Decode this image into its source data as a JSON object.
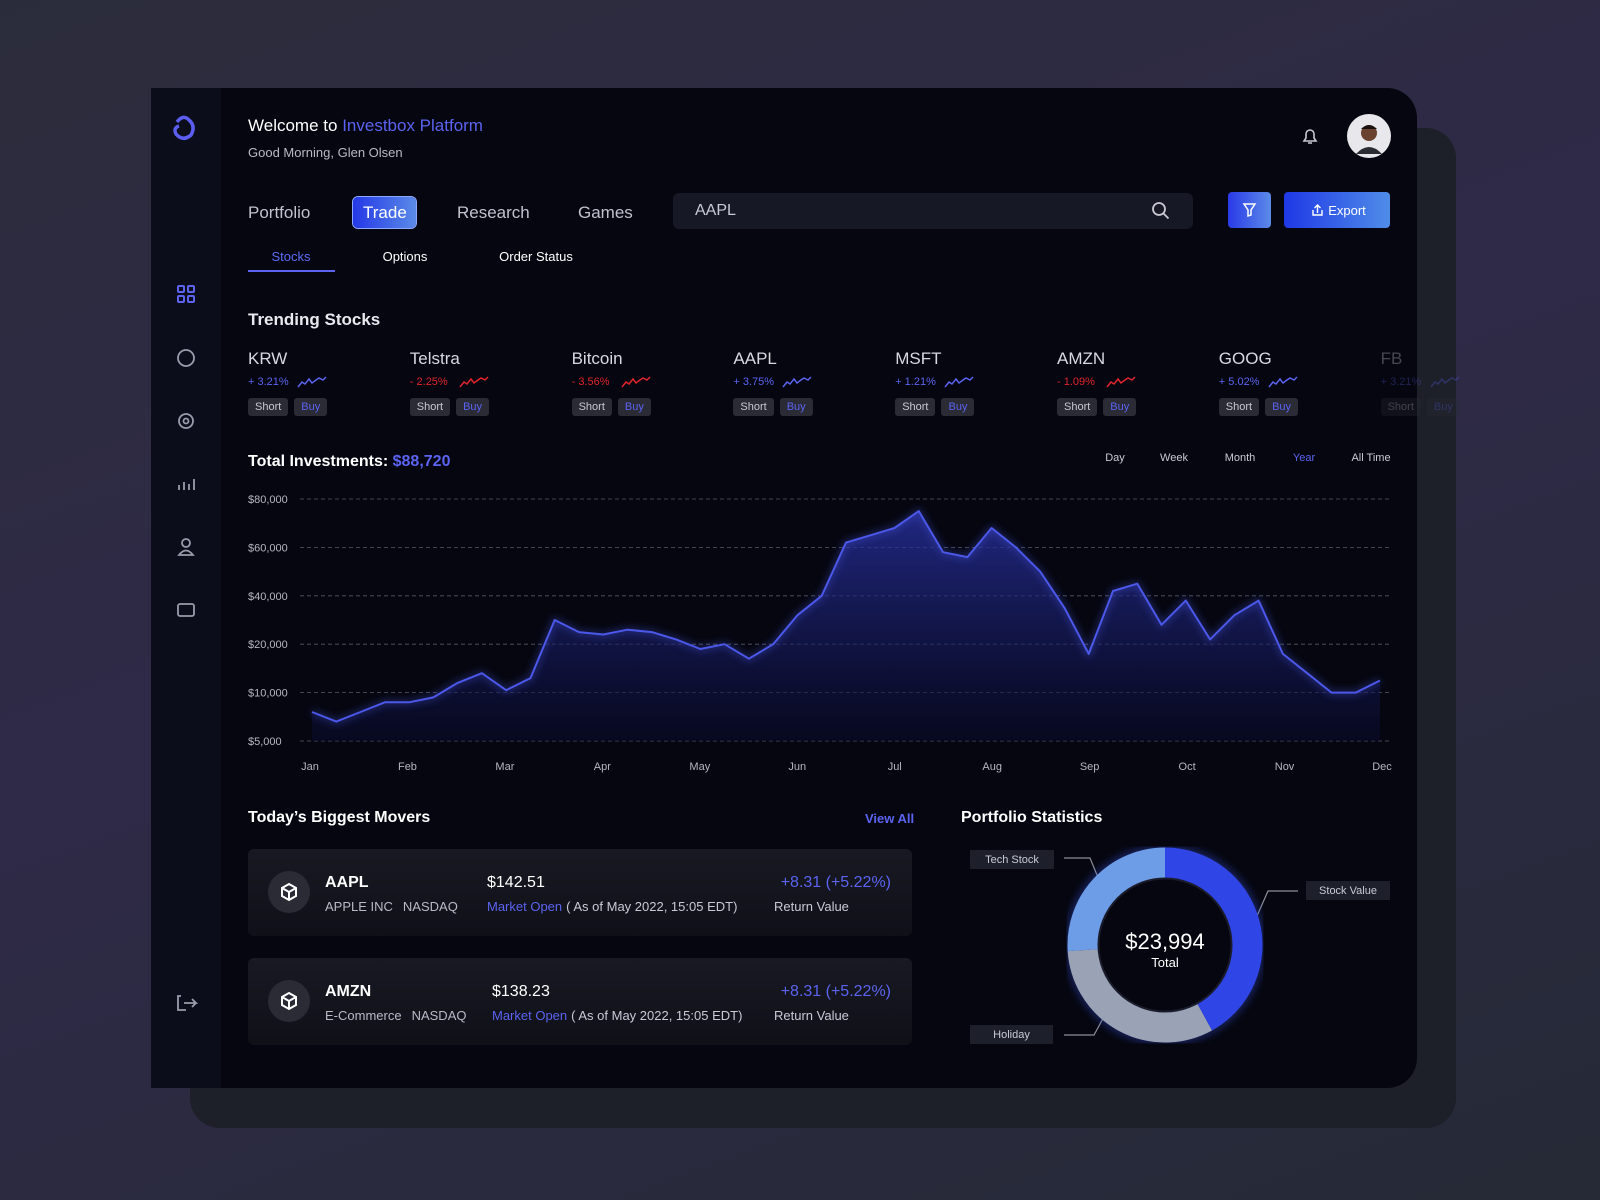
{
  "header": {
    "welcome": "Welcome to",
    "brand": "Investbox Platform",
    "greeting": "Good Morning, Glen Olsen"
  },
  "nav": {
    "tabs": [
      "Portfolio",
      "Trade",
      "Research",
      "Games"
    ],
    "active": 1
  },
  "search": {
    "query": "AAPL"
  },
  "export": "Export",
  "subtabs": {
    "items": [
      "Stocks",
      "Options",
      "Order Status"
    ],
    "active": 0
  },
  "trending": {
    "title": "Trending Stocks",
    "short": "Short",
    "buy": "Buy",
    "stocks": [
      {
        "name": "KRW",
        "change": "+ 3.21%",
        "direction": "up"
      },
      {
        "name": "Telstra",
        "change": "- 2.25%",
        "direction": "down"
      },
      {
        "name": "Bitcoin",
        "change": "- 3.56%",
        "direction": "down"
      },
      {
        "name": "AAPL",
        "change": "+ 3.75%",
        "direction": "up"
      },
      {
        "name": "MSFT",
        "change": "+ 1.21%",
        "direction": "up"
      },
      {
        "name": "AMZN",
        "change": "- 1.09%",
        "direction": "down"
      },
      {
        "name": "GOOG",
        "change": "+ 5.02%",
        "direction": "up"
      },
      {
        "name": "FB",
        "change": "+ 3.21%",
        "direction": "up"
      }
    ]
  },
  "investments": {
    "title": "Total Investments:",
    "amount": "$88,720",
    "ranges": [
      "Day",
      "Week",
      "Month",
      "Year",
      "All Time"
    ],
    "active_range": 3
  },
  "movers": {
    "title": "Today’s Biggest Movers",
    "view_all": "View All",
    "items": [
      {
        "symbol": "AAPL",
        "company": "APPLE INC",
        "exchange": "NASDAQ",
        "price": "$142.51",
        "status": "Market Open",
        "as_of": "( As of May 2022, 15:05 EDT)",
        "change": "+8.31 (+5.22%)",
        "change_label": "Return Value"
      },
      {
        "symbol": "AMZN",
        "company": "E-Commerce",
        "exchange": "NASDAQ",
        "price": "$138.23",
        "status": "Market Open",
        "as_of": "( As of May 2022, 15:05 EDT)",
        "change": "+8.31 (+5.22%)",
        "change_label": "Return Value"
      }
    ]
  },
  "portfolio": {
    "title": "Portfolio Statistics"
  },
  "chart_data": [
    {
      "type": "line",
      "color": "#4b58ea",
      "grid": true,
      "x_labels": [
        "Jan",
        "Feb",
        "Mar",
        "Apr",
        "May",
        "Jun",
        "Jul",
        "Aug",
        "Sep",
        "Oct",
        "Nov",
        "Dec"
      ],
      "values": [
        8000,
        7000,
        8000,
        9000,
        9000,
        9500,
        12000,
        14000,
        10500,
        13000,
        30000,
        25000,
        24000,
        26000,
        25000,
        22000,
        19000,
        20000,
        17000,
        20000,
        32000,
        40000,
        62000,
        65000,
        68000,
        75000,
        58000,
        56000,
        68000,
        60000,
        50000,
        35000,
        18000,
        42000,
        45000,
        28000,
        38000,
        22000,
        32000,
        38000,
        18000,
        14000,
        10000,
        10000,
        12500
      ],
      "ylim": [
        5000,
        80000
      ],
      "yticks": [
        {
          "value": 5000,
          "label": "$5,000"
        },
        {
          "value": 10000,
          "label": "$10,000"
        },
        {
          "value": 20000,
          "label": "$20,000"
        },
        {
          "value": 40000,
          "label": "$40,000"
        },
        {
          "value": 60000,
          "label": "$60,000"
        },
        {
          "value": 80000,
          "label": "$80,000"
        }
      ]
    },
    {
      "type": "pie",
      "center_value": "$23,994",
      "center_label": "Total",
      "categories": [
        "Stock Value",
        "Holiday",
        "Tech Stock"
      ],
      "values": [
        42,
        32,
        26
      ],
      "colors": [
        "#2f45e6",
        "#9aa3b6",
        "#6d9de6"
      ]
    }
  ]
}
